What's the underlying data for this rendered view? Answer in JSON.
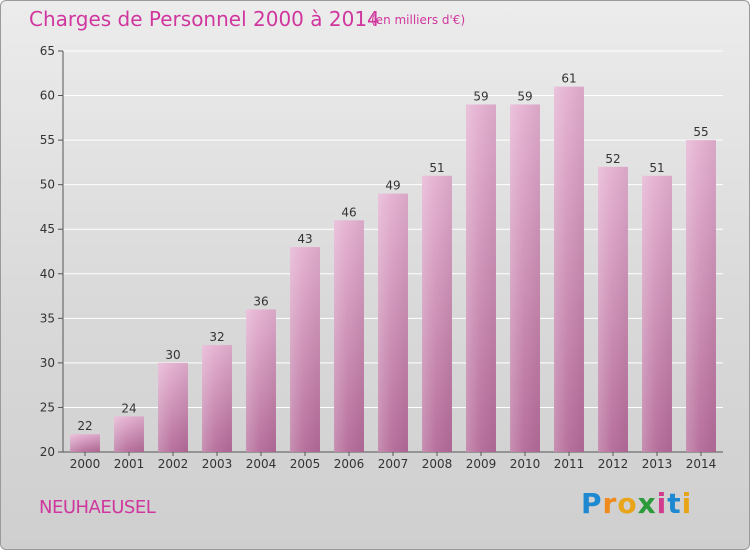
{
  "header": {
    "title": "Charges de Personnel 2000 à 2014",
    "subtitle": "(en milliers d'€)"
  },
  "footer": {
    "commune": "NEUHAEUSEL",
    "brand": "Proxiti"
  },
  "colors": {
    "title": "#d0379e",
    "bar_top": "#e2a9cd",
    "bar_bottom": "#b86e9c",
    "grid": "#ffffff"
  },
  "chart_data": {
    "type": "bar",
    "title": "Charges de Personnel 2000 à 2014",
    "subtitle": "(en milliers d'€)",
    "xlabel": "",
    "ylabel": "",
    "categories": [
      "2000",
      "2001",
      "2002",
      "2003",
      "2004",
      "2005",
      "2006",
      "2007",
      "2008",
      "2009",
      "2010",
      "2011",
      "2012",
      "2013",
      "2014"
    ],
    "values": [
      22,
      24,
      30,
      32,
      36,
      43,
      46,
      49,
      51,
      59,
      59,
      61,
      52,
      51,
      55
    ],
    "ylim": [
      20,
      65
    ],
    "yticks": [
      20,
      25,
      30,
      35,
      40,
      45,
      50,
      55,
      60,
      65
    ],
    "grid": true,
    "legend": "none"
  }
}
